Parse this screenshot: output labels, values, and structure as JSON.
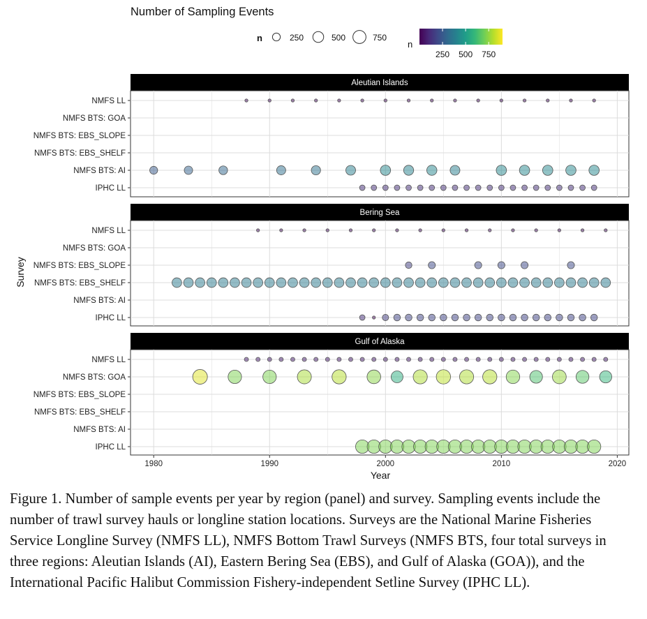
{
  "chart_data": {
    "type": "scatter",
    "title": "Number of Sampling Events",
    "xlabel": "Year",
    "ylabel": "Survey",
    "xlim": [
      1978,
      2021
    ],
    "xticks": [
      1980,
      1990,
      2000,
      2010,
      2020
    ],
    "grid": true,
    "legend": {
      "size_title": "n",
      "size_values": [
        250,
        500,
        750
      ],
      "color_title": "n",
      "color_ticks": [
        250,
        500,
        750
      ],
      "color_range": [
        0,
        900
      ],
      "placement": "top"
    },
    "surveys": [
      "NMFS LL",
      "NMFS BTS: GOA",
      "NMFS BTS: EBS_SLOPE",
      "NMFS BTS: EBS_SHELF",
      "NMFS BTS: AI",
      "IPHC LL"
    ],
    "panels": [
      {
        "name": "Aleutian Islands",
        "series": [
          {
            "survey": "NMFS LL",
            "years": [
              1988,
              1990,
              1992,
              1994,
              1996,
              1998,
              2000,
              2002,
              2004,
              2006,
              2008,
              2010,
              2012,
              2014,
              2016,
              2018
            ],
            "n": [
              30,
              30,
              30,
              30,
              30,
              30,
              30,
              30,
              30,
              30,
              30,
              30,
              30,
              30,
              30,
              30
            ]
          },
          {
            "survey": "NMFS BTS: GOA",
            "years": [],
            "n": []
          },
          {
            "survey": "NMFS BTS: EBS_SLOPE",
            "years": [],
            "n": []
          },
          {
            "survey": "NMFS BTS: EBS_SHELF",
            "years": [],
            "n": []
          },
          {
            "survey": "NMFS BTS: AI",
            "years": [
              1980,
              1983,
              1986,
              1991,
              1994,
              1997,
              2000,
              2002,
              2004,
              2006,
              2010,
              2012,
              2014,
              2016,
              2018
            ],
            "n": [
              250,
              280,
              300,
              330,
              340,
              380,
              420,
              400,
              410,
              380,
              420,
              420,
              420,
              420,
              420
            ]
          },
          {
            "survey": "IPHC LL",
            "years": [
              1998,
              1999,
              2000,
              2001,
              2002,
              2003,
              2004,
              2005,
              2006,
              2007,
              2008,
              2009,
              2010,
              2011,
              2012,
              2013,
              2014,
              2015,
              2016,
              2017,
              2018
            ],
            "n": [
              120,
              120,
              120,
              120,
              120,
              120,
              120,
              120,
              120,
              120,
              120,
              120,
              120,
              120,
              120,
              120,
              120,
              120,
              120,
              120,
              120
            ]
          }
        ]
      },
      {
        "name": "Bering Sea",
        "series": [
          {
            "survey": "NMFS LL",
            "years": [
              1989,
              1991,
              1993,
              1995,
              1997,
              1999,
              2001,
              2003,
              2005,
              2007,
              2009,
              2011,
              2013,
              2015,
              2017,
              2019
            ],
            "n": [
              30,
              30,
              30,
              30,
              30,
              30,
              30,
              30,
              30,
              30,
              30,
              30,
              30,
              30,
              30,
              30
            ]
          },
          {
            "survey": "NMFS BTS: GOA",
            "years": [],
            "n": []
          },
          {
            "survey": "NMFS BTS: EBS_SLOPE",
            "years": [
              2002,
              2004,
              2008,
              2010,
              2012,
              2016
            ],
            "n": [
              170,
              200,
              200,
              200,
              200,
              200
            ]
          },
          {
            "survey": "NMFS BTS: EBS_SHELF",
            "years": [
              1982,
              1983,
              1984,
              1985,
              1986,
              1987,
              1988,
              1989,
              1990,
              1991,
              1992,
              1993,
              1994,
              1995,
              1996,
              1997,
              1998,
              1999,
              2000,
              2001,
              2002,
              2003,
              2004,
              2005,
              2006,
              2007,
              2008,
              2009,
              2010,
              2011,
              2012,
              2013,
              2014,
              2015,
              2016,
              2017,
              2018,
              2019
            ],
            "n": [
              370,
              370,
              370,
              370,
              370,
              370,
              370,
              370,
              370,
              370,
              370,
              370,
              370,
              370,
              370,
              370,
              370,
              370,
              370,
              370,
              370,
              370,
              370,
              370,
              370,
              370,
              370,
              370,
              370,
              370,
              370,
              370,
              370,
              370,
              370,
              370,
              370,
              370
            ]
          },
          {
            "survey": "NMFS BTS: AI",
            "years": [],
            "n": []
          },
          {
            "survey": "IPHC LL",
            "years": [
              1998,
              1999,
              2000,
              2001,
              2002,
              2003,
              2004,
              2005,
              2006,
              2007,
              2008,
              2009,
              2010,
              2011,
              2012,
              2013,
              2014,
              2015,
              2016,
              2017,
              2018
            ],
            "n": [
              120,
              15,
              160,
              180,
              180,
              180,
              180,
              180,
              180,
              180,
              180,
              180,
              180,
              180,
              180,
              180,
              180,
              180,
              180,
              180,
              180
            ]
          }
        ]
      },
      {
        "name": "Gulf of Alaska",
        "series": [
          {
            "survey": "NMFS LL",
            "years": [
              1988,
              1989,
              1990,
              1991,
              1992,
              1993,
              1994,
              1995,
              1996,
              1997,
              1998,
              1999,
              2000,
              2001,
              2002,
              2003,
              2004,
              2005,
              2006,
              2007,
              2008,
              2009,
              2010,
              2011,
              2012,
              2013,
              2014,
              2015,
              2016,
              2017,
              2018,
              2019
            ],
            "n": [
              70,
              70,
              70,
              70,
              70,
              70,
              70,
              70,
              70,
              70,
              70,
              70,
              70,
              70,
              70,
              70,
              70,
              70,
              70,
              70,
              70,
              70,
              70,
              70,
              70,
              70,
              70,
              70,
              70,
              70,
              70,
              70
            ]
          },
          {
            "survey": "NMFS BTS: GOA",
            "years": [
              1984,
              1987,
              1990,
              1993,
              1996,
              1999,
              2001,
              2003,
              2005,
              2007,
              2009,
              2011,
              2013,
              2015,
              2017,
              2019
            ],
            "n": [
              860,
              720,
              720,
              780,
              800,
              740,
              560,
              790,
              810,
              790,
              800,
              730,
              640,
              760,
              660,
              590
            ]
          },
          {
            "survey": "NMFS BTS: EBS_SLOPE",
            "years": [],
            "n": []
          },
          {
            "survey": "NMFS BTS: EBS_SHELF",
            "years": [],
            "n": []
          },
          {
            "survey": "NMFS BTS: AI",
            "years": [],
            "n": []
          },
          {
            "survey": "IPHC LL",
            "years": [
              1998,
              1999,
              2000,
              2001,
              2002,
              2003,
              2004,
              2005,
              2006,
              2007,
              2008,
              2009,
              2010,
              2011,
              2012,
              2013,
              2014,
              2015,
              2016,
              2017,
              2018
            ],
            "n": [
              720,
              720,
              720,
              720,
              720,
              720,
              720,
              720,
              720,
              720,
              720,
              720,
              720,
              720,
              720,
              720,
              720,
              720,
              720,
              720,
              720
            ]
          }
        ]
      }
    ]
  },
  "caption": "Figure 1. Number of sample events per year by region (panel) and survey. Sampling events include the number of trawl survey hauls or longline station locations. Surveys are the National Marine Fisheries Service Longline Survey (NMFS LL), NMFS Bottom Trawl Surveys (NMFS BTS, four total surveys in three regions: Aleutian Islands (AI), Eastern Bering Sea (EBS), and Gulf of Alaska (GOA)), and the International Pacific Halibut Commission Fishery-independent Setline Survey (IPHC LL).",
  "colors": {
    "strip": "#000000",
    "strip_text": "#ffffff",
    "grid": "#dcdcdc",
    "point_stroke": "#555555",
    "viridis": [
      "#440154",
      "#482878",
      "#3e4a89",
      "#31688e",
      "#26828e",
      "#1f9e89",
      "#35b779",
      "#6ece58",
      "#b5de2b",
      "#fde725"
    ]
  }
}
